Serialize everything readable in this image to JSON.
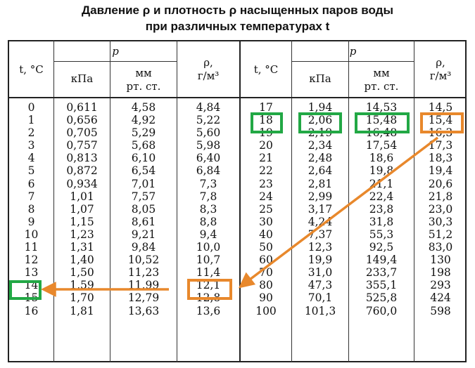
{
  "title": {
    "line1": "Давление ρ и плотность ρ насыщенных паров воды",
    "line2": "при различных температурах t"
  },
  "headers": {
    "t": "t, °C",
    "p": "p",
    "kpa": "кПа",
    "mm": "мм",
    "mm_unit": "рт. ст.",
    "rho": "ρ,",
    "rho_unit": "г/м³"
  },
  "table_left": {
    "t": [
      "0",
      "1",
      "2",
      "3",
      "4",
      "5",
      "6",
      "7",
      "8",
      "9",
      "10",
      "11",
      "12",
      "13",
      "14",
      "15",
      "16"
    ],
    "kpa": [
      "0,611",
      "0,656",
      "0,705",
      "0,757",
      "0,813",
      "0,872",
      "0,934",
      "1,01",
      "1,07",
      "1,15",
      "1,23",
      "1,31",
      "1,40",
      "1,50",
      "1,59",
      "1,70",
      "1,81"
    ],
    "mm": [
      "4,58",
      "4,92",
      "5,29",
      "5,68",
      "6,10",
      "6,54",
      "7,01",
      "7,57",
      "8,05",
      "8,61",
      "9,21",
      "9,84",
      "10,52",
      "11,23",
      "11,99",
      "12,79",
      "13,63"
    ],
    "rho": [
      "4,84",
      "5,22",
      "5,60",
      "5,98",
      "6,40",
      "6,84",
      "7,3",
      "7,8",
      "8,3",
      "8,8",
      "9,4",
      "10,0",
      "10,7",
      "11,4",
      "12,1",
      "12,8",
      "13,6"
    ]
  },
  "table_right": {
    "t": [
      "17",
      "18",
      "19",
      "20",
      "21",
      "22",
      "23",
      "24",
      "25",
      "30",
      "40",
      "50",
      "60",
      "70",
      "80",
      "90",
      "100"
    ],
    "kpa": [
      "1,94",
      "2,06",
      "2,19",
      "2,34",
      "2,48",
      "2,64",
      "2,81",
      "2,99",
      "3,17",
      "4,24",
      "7,37",
      "12,3",
      "19,9",
      "31,0",
      "47,3",
      "70,1",
      "101,3"
    ],
    "mm": [
      "14,53",
      "15,48",
      "16,48",
      "17,54",
      "18,6",
      "19,8",
      "21,1",
      "22,4",
      "23,8",
      "31,8",
      "55,3",
      "92,5",
      "149,4",
      "233,7",
      "355,1",
      "525,8",
      "760,0"
    ],
    "rho": [
      "14,5",
      "15,4",
      "16,3",
      "17,3",
      "18,3",
      "19,4",
      "20,6",
      "21,8",
      "23,0",
      "30,3",
      "51,2",
      "83,0",
      "130",
      "198",
      "293",
      "424",
      "598"
    ]
  },
  "highlight_colors": {
    "green": "#22a845",
    "orange": "#e8882c"
  }
}
